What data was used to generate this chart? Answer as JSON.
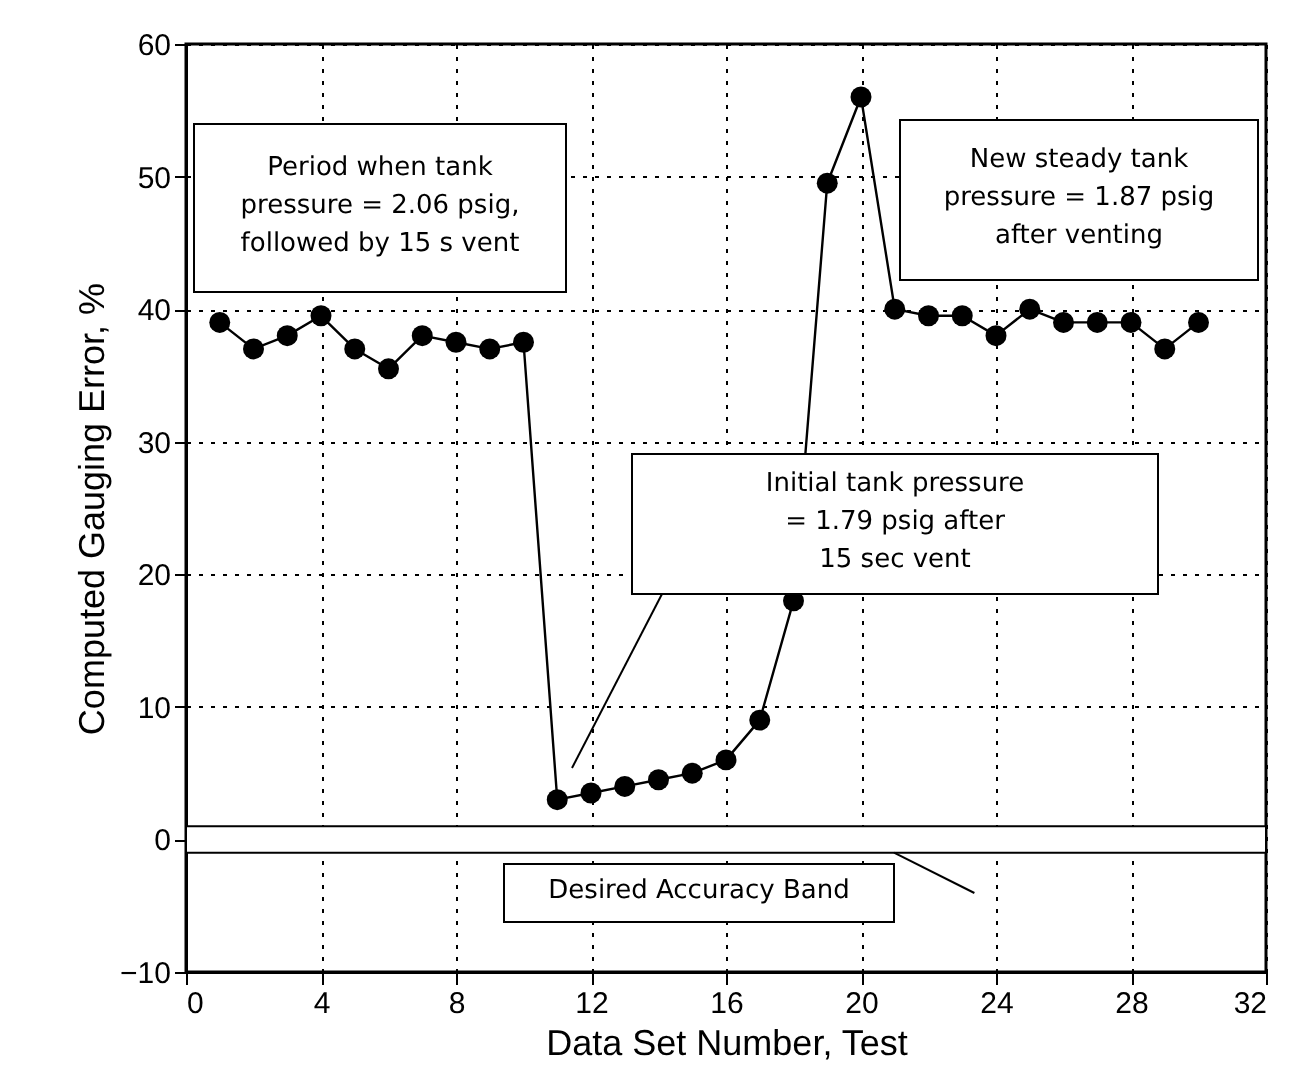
{
  "chart_data": {
    "type": "line",
    "xlabel": "Data Set Number, Test",
    "ylabel": "Computed Gauging Error, %",
    "x": [
      1,
      2,
      3,
      4,
      5,
      6,
      7,
      8,
      9,
      10,
      11,
      12,
      13,
      14,
      15,
      16,
      17,
      18,
      19,
      20,
      21,
      22,
      23,
      24,
      25,
      26,
      27,
      28,
      29,
      30
    ],
    "series": [
      {
        "color": "#000000",
        "values": [
          39,
          37,
          38,
          39.5,
          37,
          35.5,
          38,
          37.5,
          37,
          37.5,
          3,
          3.5,
          4,
          4.5,
          5,
          6,
          9,
          18,
          49.5,
          56,
          40,
          39.5,
          39.5,
          38,
          40,
          39,
          39,
          39,
          37,
          39
        ]
      }
    ],
    "xlim": [
      0,
      32
    ],
    "xticks": [
      0,
      4,
      8,
      12,
      16,
      20,
      24,
      28,
      32
    ],
    "ylim": [
      -10,
      60
    ],
    "yticks": [
      -10,
      0,
      10,
      20,
      30,
      40,
      50,
      60
    ],
    "grid": true,
    "marker": "circle",
    "line_style": "solid",
    "bands": [
      {
        "axis": "y",
        "from": -1,
        "to": 1,
        "label": "Desired Accuracy Band",
        "color": "#ffffff"
      }
    ],
    "annotations": [
      "Period when tank\n pressure = 2.06 psig,\nfollowed by 15 s vent",
      "New steady tank\npressure = 1.87 psig\n after venting",
      "Initial tank pressure\n= 1.79 psig after\n15 sec vent"
    ]
  }
}
